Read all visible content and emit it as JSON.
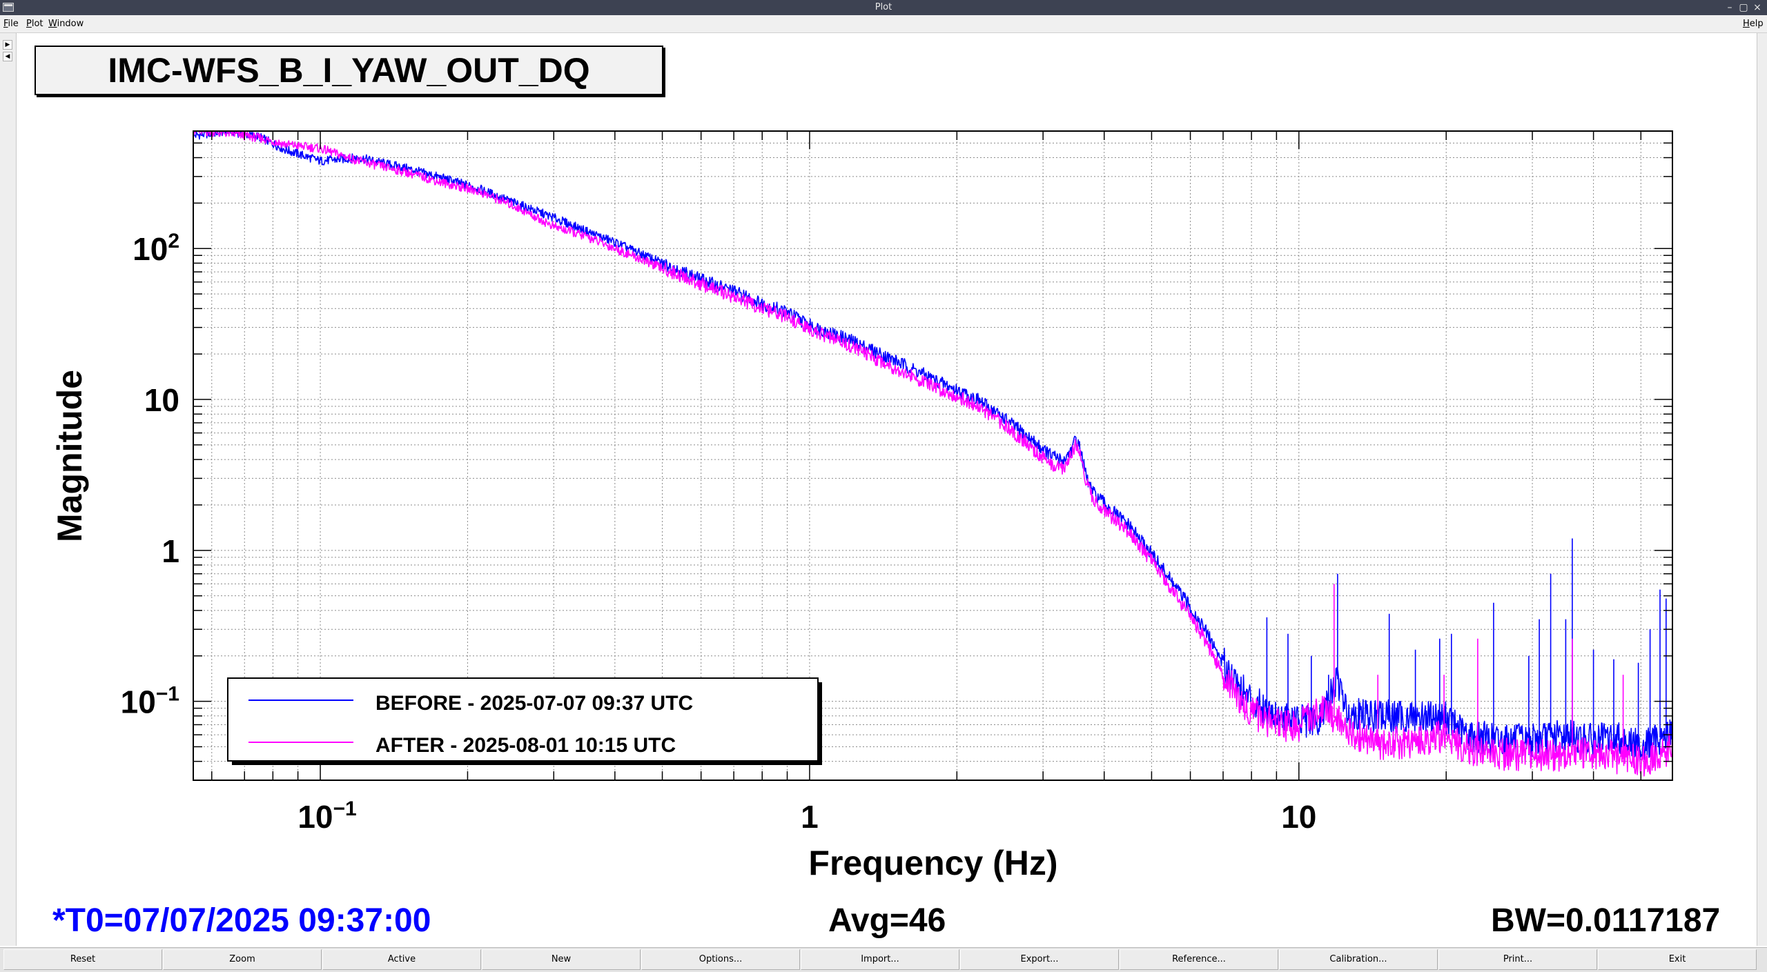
{
  "window": {
    "title": "Plot",
    "controls": [
      "–",
      "▢",
      "×"
    ]
  },
  "menu": {
    "items": [
      "File",
      "Plot",
      "Window"
    ],
    "help": "Help"
  },
  "graph_title": "IMC-WFS_B_I_YAW_OUT_DQ",
  "chart_data": {
    "type": "line",
    "title": "IMC-WFS_B_I_YAW_OUT_DQ",
    "xlabel": "Frequency (Hz)",
    "ylabel": "Magnitude",
    "xscale": "log",
    "yscale": "log",
    "xlim": [
      0.055,
      58
    ],
    "ylim": [
      0.03,
      600
    ],
    "grid": true,
    "legend_position": "bottom-left",
    "x_tick_labels": [
      {
        "value": 0.1,
        "base": "10",
        "exp": "−1"
      },
      {
        "value": 1,
        "base": "1",
        "exp": ""
      },
      {
        "value": 10,
        "base": "10",
        "exp": ""
      }
    ],
    "y_tick_labels": [
      {
        "value": 100,
        "base": "10",
        "exp": "2"
      },
      {
        "value": 10,
        "base": "10",
        "exp": ""
      },
      {
        "value": 1,
        "base": "1",
        "exp": ""
      },
      {
        "value": 0.1,
        "base": "10",
        "exp": "−1"
      }
    ],
    "series": [
      {
        "name": "BEFORE - 2025-07-07 09:37 UTC",
        "color": "#0000ff",
        "points": [
          [
            0.055,
            560
          ],
          [
            0.065,
            600
          ],
          [
            0.075,
            550
          ],
          [
            0.085,
            450
          ],
          [
            0.1,
            380
          ],
          [
            0.12,
            400
          ],
          [
            0.15,
            340
          ],
          [
            0.18,
            290
          ],
          [
            0.21,
            250
          ],
          [
            0.25,
            200
          ],
          [
            0.3,
            160
          ],
          [
            0.35,
            130
          ],
          [
            0.4,
            110
          ],
          [
            0.5,
            80
          ],
          [
            0.6,
            62
          ],
          [
            0.7,
            52
          ],
          [
            0.8,
            43
          ],
          [
            0.9,
            38
          ],
          [
            1.0,
            31
          ],
          [
            1.2,
            25
          ],
          [
            1.5,
            18
          ],
          [
            1.8,
            13.5
          ],
          [
            2.0,
            11.5
          ],
          [
            2.2,
            10
          ],
          [
            2.5,
            7.5
          ],
          [
            2.8,
            5.6
          ],
          [
            3.1,
            4.3
          ],
          [
            3.3,
            3.9
          ],
          [
            3.45,
            4.8
          ],
          [
            3.5,
            5.5
          ],
          [
            3.58,
            4.6
          ],
          [
            3.68,
            3.0
          ],
          [
            3.8,
            2.4
          ],
          [
            4.1,
            1.9
          ],
          [
            4.5,
            1.45
          ],
          [
            5.0,
            0.95
          ],
          [
            5.5,
            0.62
          ],
          [
            6.0,
            0.42
          ],
          [
            6.5,
            0.28
          ],
          [
            7.0,
            0.18
          ],
          [
            7.5,
            0.13
          ],
          [
            8.0,
            0.1
          ],
          [
            9.0,
            0.082
          ],
          [
            10.0,
            0.075
          ],
          [
            11.0,
            0.072
          ],
          [
            12.0,
            0.14
          ],
          [
            12.5,
            0.085
          ],
          [
            14,
            0.08
          ],
          [
            16,
            0.079
          ],
          [
            18,
            0.08
          ],
          [
            20,
            0.078
          ],
          [
            22,
            0.06
          ],
          [
            25,
            0.056
          ],
          [
            30,
            0.055
          ],
          [
            35,
            0.06
          ],
          [
            40,
            0.055
          ],
          [
            45,
            0.058
          ],
          [
            50,
            0.05
          ],
          [
            55,
            0.058
          ],
          [
            58,
            0.062
          ]
        ],
        "peaks": [
          [
            8.6,
            0.36
          ],
          [
            9.5,
            0.28
          ],
          [
            10.6,
            0.2
          ],
          [
            11.5,
            0.15
          ],
          [
            12.0,
            0.7
          ],
          [
            15.3,
            0.38
          ],
          [
            17.3,
            0.22
          ],
          [
            19.4,
            0.26
          ],
          [
            20.5,
            0.28
          ],
          [
            25.0,
            0.45
          ],
          [
            29.5,
            0.2
          ],
          [
            31.0,
            0.35
          ],
          [
            32.7,
            0.7
          ],
          [
            35.1,
            0.35
          ],
          [
            36.2,
            1.2
          ],
          [
            40.0,
            0.22
          ],
          [
            44.0,
            0.19
          ],
          [
            49.4,
            0.18
          ],
          [
            52.2,
            0.3
          ],
          [
            54.7,
            0.55
          ],
          [
            56.3,
            0.48
          ]
        ]
      },
      {
        "name": "AFTER - 2025-08-01 10:15 UTC",
        "color": "#ff00ff",
        "points": [
          [
            0.055,
            600
          ],
          [
            0.065,
            580
          ],
          [
            0.075,
            540
          ],
          [
            0.085,
            490
          ],
          [
            0.1,
            460
          ],
          [
            0.12,
            380
          ],
          [
            0.15,
            320
          ],
          [
            0.18,
            270
          ],
          [
            0.21,
            240
          ],
          [
            0.25,
            190
          ],
          [
            0.3,
            140
          ],
          [
            0.35,
            120
          ],
          [
            0.4,
            100
          ],
          [
            0.5,
            74
          ],
          [
            0.6,
            58
          ],
          [
            0.7,
            48
          ],
          [
            0.8,
            40
          ],
          [
            0.9,
            35
          ],
          [
            1.0,
            29
          ],
          [
            1.2,
            23
          ],
          [
            1.5,
            16
          ],
          [
            1.8,
            12
          ],
          [
            2.0,
            10.5
          ],
          [
            2.2,
            9
          ],
          [
            2.5,
            6.8
          ],
          [
            2.8,
            5.0
          ],
          [
            3.1,
            3.7
          ],
          [
            3.3,
            3.5
          ],
          [
            3.45,
            4.5
          ],
          [
            3.5,
            5.2
          ],
          [
            3.58,
            4.3
          ],
          [
            3.68,
            2.8
          ],
          [
            3.8,
            2.2
          ],
          [
            4.1,
            1.7
          ],
          [
            4.5,
            1.3
          ],
          [
            5.0,
            0.85
          ],
          [
            5.5,
            0.55
          ],
          [
            6.0,
            0.37
          ],
          [
            6.5,
            0.24
          ],
          [
            7.0,
            0.15
          ],
          [
            7.5,
            0.11
          ],
          [
            8.0,
            0.085
          ],
          [
            9.0,
            0.07
          ],
          [
            10.0,
            0.068
          ],
          [
            11.0,
            0.09
          ],
          [
            12.0,
            0.075
          ],
          [
            13,
            0.06
          ],
          [
            15,
            0.052
          ],
          [
            18,
            0.055
          ],
          [
            20,
            0.06
          ],
          [
            22,
            0.048
          ],
          [
            25,
            0.045
          ],
          [
            30,
            0.044
          ],
          [
            35,
            0.043
          ],
          [
            40,
            0.046
          ],
          [
            45,
            0.042
          ],
          [
            50,
            0.04
          ],
          [
            55,
            0.045
          ],
          [
            58,
            0.05
          ]
        ],
        "peaks": [
          [
            11.8,
            0.6
          ],
          [
            14.5,
            0.15
          ],
          [
            19.8,
            0.15
          ],
          [
            23.2,
            0.26
          ],
          [
            36.2,
            0.26
          ],
          [
            46.0,
            0.15
          ]
        ]
      }
    ]
  },
  "status": {
    "t0": "*T0=07/07/2025 09:37:00",
    "avg": "Avg=46",
    "bw": "BW=0.0117187",
    "t0_color": "#0000ff"
  },
  "buttons": [
    "Reset",
    "Zoom",
    "Active",
    "New",
    "Options...",
    "Import...",
    "Export...",
    "Reference...",
    "Calibration...",
    "Print...",
    "Exit"
  ]
}
